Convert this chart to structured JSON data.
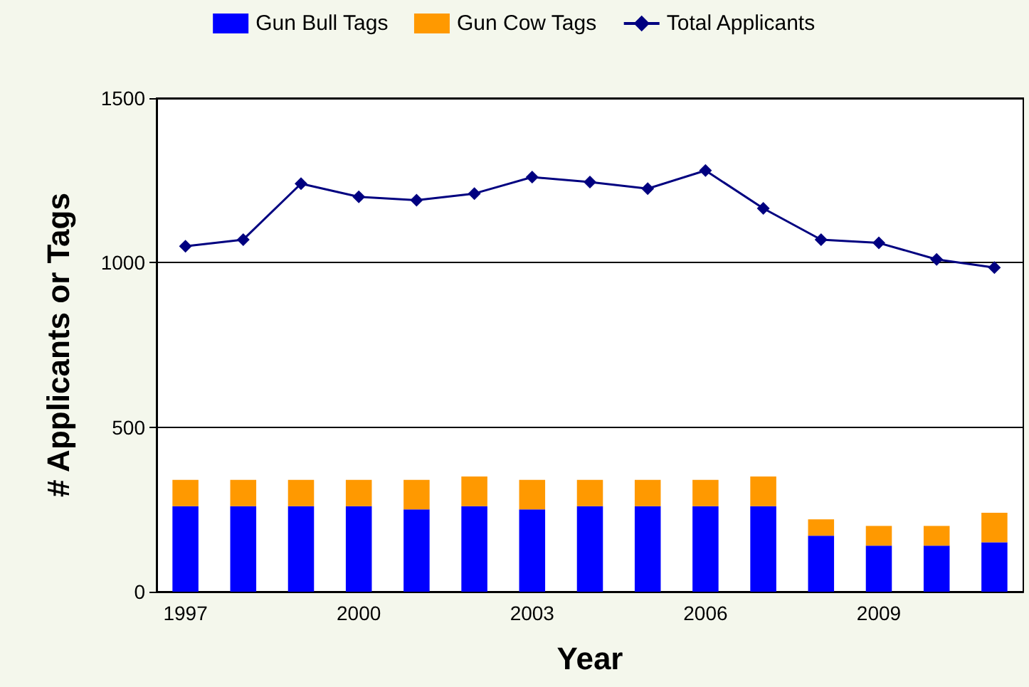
{
  "chart_data": {
    "type": "bar",
    "xlabel": "Year",
    "ylabel": "# Applicants or Tags",
    "categories": [
      "1997",
      null,
      null,
      "2000",
      null,
      null,
      "2003",
      null,
      null,
      "2006",
      null,
      null,
      "2009",
      null,
      null
    ],
    "stacked": true,
    "ylim": [
      0,
      1500
    ],
    "yticks": [
      0,
      500,
      1000,
      1500
    ],
    "grid": "y",
    "legend": "top",
    "series": [
      {
        "name": "Gun Bull Tags",
        "color": "#0000ff",
        "values": [
          260,
          260,
          260,
          260,
          250,
          260,
          250,
          260,
          260,
          260,
          260,
          170,
          140,
          140,
          150
        ]
      },
      {
        "name": "Gun Cow Tags",
        "color": "#ff9900",
        "values": [
          80,
          80,
          80,
          80,
          90,
          90,
          90,
          80,
          80,
          80,
          90,
          50,
          60,
          60,
          90
        ]
      },
      {
        "name": "Total Applicants",
        "type": "line",
        "color": "#000080",
        "marker": "diamond",
        "line_style": "solid",
        "values": [
          1050,
          1070,
          1240,
          1200,
          1190,
          1210,
          1260,
          1245,
          1225,
          1280,
          1165,
          1070,
          1060,
          1010,
          985
        ]
      }
    ]
  }
}
